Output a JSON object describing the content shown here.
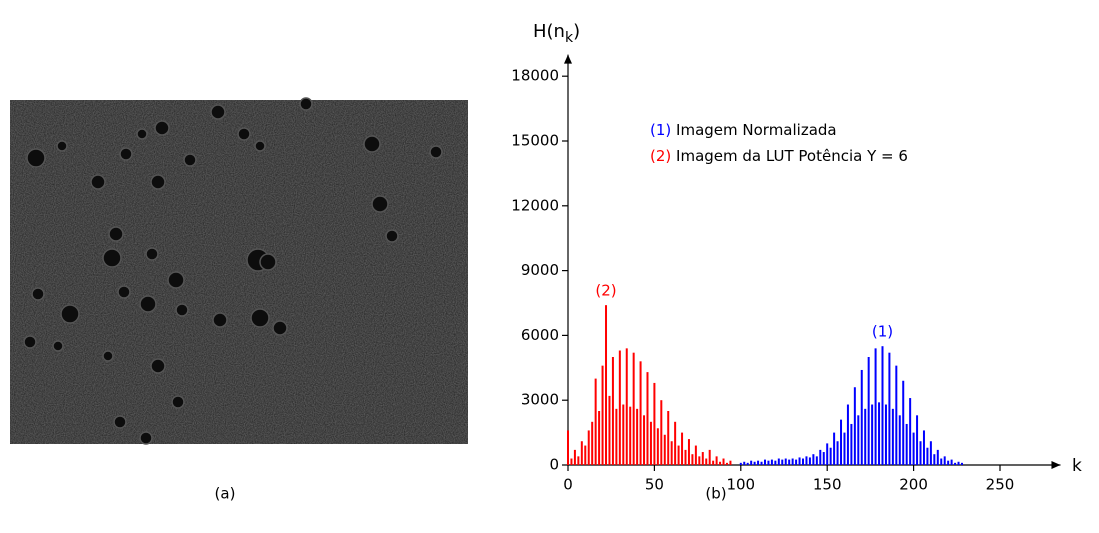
{
  "image": {
    "caption": "(a)"
  },
  "chart_data": {
    "type": "bar",
    "caption": "(b)",
    "ylabel": [
      "H(n",
      "k",
      ")"
    ],
    "xlabel": "k",
    "xlim": [
      0,
      285
    ],
    "ylim": [
      0,
      19000
    ],
    "xticks": [
      0,
      50,
      100,
      150,
      200,
      250
    ],
    "yticks": [
      0,
      3000,
      6000,
      9000,
      12000,
      15000,
      18000
    ],
    "series": [
      {
        "name": "Imagem Normalizada",
        "label": "(1)",
        "color": "#0000ff",
        "x": [
          100,
          102,
          104,
          106,
          108,
          110,
          112,
          114,
          116,
          118,
          120,
          122,
          124,
          126,
          128,
          130,
          132,
          134,
          136,
          138,
          140,
          142,
          144,
          146,
          148,
          150,
          152,
          154,
          156,
          158,
          160,
          162,
          164,
          166,
          168,
          170,
          172,
          174,
          176,
          178,
          180,
          182,
          184,
          186,
          188,
          190,
          192,
          194,
          196,
          198,
          200,
          202,
          204,
          206,
          208,
          210,
          212,
          214,
          216,
          218,
          220,
          222,
          224,
          226,
          228
        ],
        "values": [
          100,
          150,
          100,
          200,
          150,
          200,
          150,
          250,
          200,
          250,
          200,
          300,
          250,
          300,
          250,
          300,
          250,
          350,
          300,
          400,
          350,
          500,
          400,
          700,
          600,
          1000,
          800,
          1500,
          1100,
          2100,
          1500,
          2800,
          1900,
          3600,
          2300,
          4400,
          2600,
          5000,
          2800,
          5400,
          2900,
          5500,
          2800,
          5200,
          2600,
          4600,
          2300,
          3900,
          1900,
          3100,
          1500,
          2300,
          1100,
          1600,
          800,
          1100,
          500,
          700,
          300,
          400,
          200,
          250,
          100,
          150,
          100
        ]
      },
      {
        "name": "Imagem da LUT Potência Y = 6",
        "label": "(2)",
        "color": "#ff0000",
        "x": [
          0,
          2,
          4,
          6,
          8,
          10,
          12,
          14,
          16,
          18,
          20,
          22,
          24,
          26,
          28,
          30,
          32,
          34,
          36,
          38,
          40,
          42,
          44,
          46,
          48,
          50,
          52,
          54,
          56,
          58,
          60,
          62,
          64,
          66,
          68,
          70,
          72,
          74,
          76,
          78,
          80,
          82,
          84,
          86,
          88,
          90,
          92,
          94
        ],
        "values": [
          1600,
          300,
          700,
          400,
          1100,
          900,
          1600,
          2000,
          4000,
          2500,
          4600,
          7400,
          3200,
          5000,
          2600,
          5300,
          2800,
          5400,
          2700,
          5200,
          2600,
          4800,
          2300,
          4300,
          2000,
          3800,
          1700,
          3000,
          1400,
          2500,
          1100,
          2000,
          900,
          1500,
          700,
          1200,
          500,
          900,
          400,
          600,
          300,
          700,
          200,
          400,
          150,
          300,
          100,
          200
        ]
      }
    ]
  }
}
